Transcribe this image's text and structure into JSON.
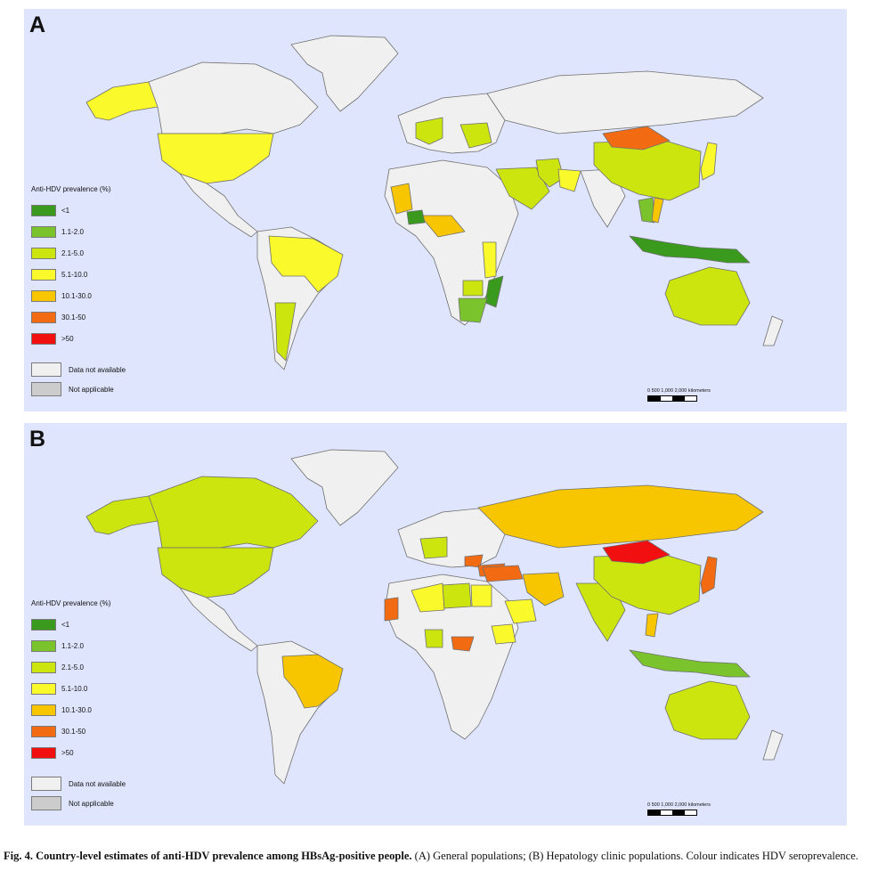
{
  "panels": [
    {
      "letter": "A"
    },
    {
      "letter": "B"
    }
  ],
  "legend": {
    "title": "Anti-HDV prevalence (%)",
    "items": [
      {
        "label": "<1",
        "color": "#3a9a1e"
      },
      {
        "label": "1.1-2.0",
        "color": "#7ac32d"
      },
      {
        "label": "2.1-5.0",
        "color": "#cce50f"
      },
      {
        "label": "5.1-10.0",
        "color": "#f9f92b"
      },
      {
        "label": "10.1-30.0",
        "color": "#f7c600"
      },
      {
        "label": "30.1-50",
        "color": "#f26b12"
      },
      {
        "label": ">50",
        "color": "#f20f0f"
      }
    ],
    "na": [
      {
        "label": "Data not available",
        "color": "#f0f0f0"
      },
      {
        "label": "Not applicable",
        "color": "#cccccc"
      }
    ]
  },
  "scale_text": "0  500  1,000    2,000 kilometers",
  "caption": {
    "bold": "Fig. 4. Country-level estimates of anti-HDV prevalence among HBsAg-positive people.",
    "rest": " (A) General populations; (B) Hepatology clinic populations. Colour indicates HDV seroprevalence."
  },
  "colors": {
    "ocean": "#dfe5fc",
    "land_na": "#f0f0f0",
    "border": "#6f6f6f"
  }
}
